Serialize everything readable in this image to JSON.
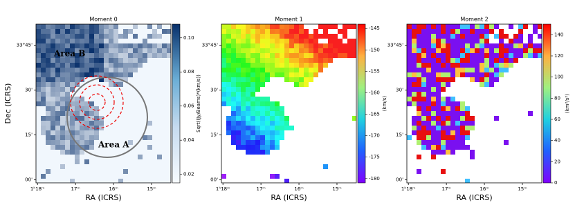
{
  "chart_data": [
    {
      "type": "heatmap",
      "title": "Moment 0",
      "xlabel": "RA (ICRS)",
      "ylabel": "Dec (ICRS)",
      "colorbar_label": "Sqrt((Jy/Beams)*(km/s))",
      "colormap": "Blues",
      "xlim": [
        18.04,
        14.49
      ],
      "xticks": [
        {
          "value": 18,
          "label": "1ʰ18ᵐ"
        },
        {
          "value": 17,
          "label": "17ᵐ"
        },
        {
          "value": 16,
          "label": "16ᵐ"
        },
        {
          "value": 15,
          "label": "15ᵐ"
        }
      ],
      "ylim": [
        -1,
        52
      ],
      "yticks": [
        {
          "value": 0,
          "label": "00'"
        },
        {
          "value": 15,
          "label": "15'"
        },
        {
          "value": 30,
          "label": "30'"
        },
        {
          "value": 45,
          "label": "33°45'"
        }
      ],
      "clim": [
        0.015,
        0.108
      ],
      "cticks": [
        0.02,
        0.04,
        0.06,
        0.08,
        {
          "value": 0.1,
          "label": "0.10"
        }
      ],
      "annotations": [
        "Area B",
        "Area A"
      ]
    },
    {
      "type": "heatmap",
      "title": "Moment 1",
      "xlabel": "RA (ICRS)",
      "colorbar_label": "(km/s)",
      "colormap": "rainbow",
      "xlim": [
        18.04,
        14.49
      ],
      "xticks": [
        {
          "value": 18,
          "label": "1ʰ18ᵐ"
        },
        {
          "value": 17,
          "label": "17ᵐ"
        },
        {
          "value": 16,
          "label": "16ᵐ"
        },
        {
          "value": 15,
          "label": "15ᵐ"
        }
      ],
      "ylim": [
        -1,
        52
      ],
      "yticks": [
        {
          "value": 0,
          "label": "00'"
        },
        {
          "value": 15,
          "label": "15'"
        },
        {
          "value": 30,
          "label": "30'"
        },
        {
          "value": 45,
          "label": "33°45'"
        }
      ],
      "clim": [
        -181,
        -144
      ],
      "cticks": [
        -180,
        -175,
        -170,
        -165,
        -160,
        -155,
        -150,
        -145
      ]
    },
    {
      "type": "heatmap",
      "title": "Moment 2",
      "xlabel": "RA (ICRS)",
      "colorbar_label": "(km²/s²)",
      "colormap": "rainbow-random",
      "xlim": [
        18.04,
        14.49
      ],
      "xticks": [
        {
          "value": 18,
          "label": "1ʰ18ᵐ"
        },
        {
          "value": 17,
          "label": "17ᵐ"
        },
        {
          "value": 16,
          "label": "16ᵐ"
        },
        {
          "value": 15,
          "label": "15ᵐ"
        }
      ],
      "ylim": [
        -1,
        52
      ],
      "yticks": [
        {
          "value": 0,
          "label": "00'"
        },
        {
          "value": 15,
          "label": "15'"
        },
        {
          "value": 30,
          "label": "30'"
        },
        {
          "value": 45,
          "label": "33°45'"
        }
      ],
      "clim": [
        0,
        150
      ],
      "cticks": [
        0,
        20,
        40,
        60,
        80,
        100,
        120,
        140
      ]
    }
  ]
}
